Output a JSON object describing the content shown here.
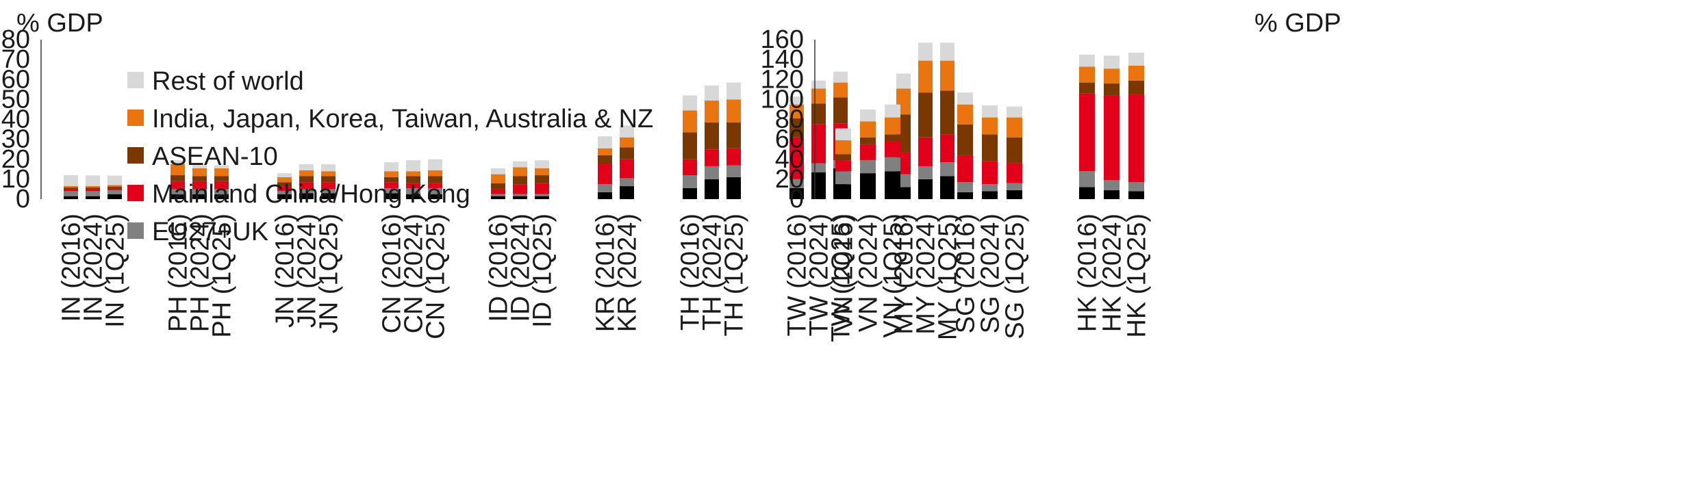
{
  "chart_data": {
    "type": "bar",
    "stacked": true,
    "colors": {
      "Other": "#000000",
      "EU27+UK": "#808080",
      "Mainland China/Hong Kong": "#e2001a",
      "ASEAN-10": "#7a3800",
      "India, Japan, Korea, Taiwan, Australia & NZ": "#ea7410",
      "Rest of world": "#d8d8d8"
    },
    "legend": [
      "Rest of world",
      "India, Japan, Korea, Taiwan, Australia & NZ",
      "ASEAN-10",
      "Mainland China/Hong Kong",
      "EU27+UK"
    ],
    "legend_placement": "top-left",
    "stack_order": [
      "Other",
      "EU27+UK",
      "Mainland China/Hong Kong",
      "ASEAN-10",
      "India, Japan, Korea, Taiwan, Australia & NZ",
      "Rest of world"
    ],
    "panels": [
      {
        "ylabel": "% GDP",
        "ylim": [
          0,
          80
        ],
        "yticks": [
          0,
          10,
          20,
          30,
          40,
          50,
          60,
          70,
          80
        ],
        "groups": [
          {
            "categories": [
              "IN (2016)",
              "IN (2024)",
              "IN (1Q25)"
            ],
            "values": [
              [
                1.5,
                2.5,
                1.0,
                0.8,
                0.8,
                5.5
              ],
              [
                1.5,
                2.5,
                1.0,
                0.8,
                0.8,
                5.3
              ],
              [
                2.5,
                2.0,
                1.0,
                0.8,
                0.8,
                4.7
              ]
            ]
          },
          {
            "categories": [
              "PH (2016)",
              "PH (2024)",
              "PH (1Q25)"
            ],
            "values": [
              [
                2.5,
                2.5,
                4.0,
                3.0,
                5.5,
                2.0
              ],
              [
                2.5,
                2.5,
                4.0,
                2.5,
                4.0,
                1.5
              ],
              [
                2.5,
                2.5,
                4.0,
                2.5,
                4.0,
                1.5
              ]
            ]
          },
          {
            "categories": [
              "JN (2016)",
              "JN (2024)",
              "JN (1Q25)"
            ],
            "values": [
              [
                2.5,
                1.5,
                2.5,
                2.0,
                2.5,
                2.0
              ],
              [
                3.0,
                2.0,
                3.5,
                3.0,
                3.0,
                3.0
              ],
              [
                3.0,
                2.0,
                3.5,
                3.0,
                2.5,
                3.5
              ]
            ]
          },
          {
            "categories": [
              "CN (2016)",
              "CN (2024)",
              "CN (1Q25)"
            ],
            "values": [
              [
                3.0,
                2.5,
                3.0,
                2.5,
                3.0,
                4.5
              ],
              [
                2.5,
                3.0,
                2.5,
                3.5,
                2.5,
                5.5
              ],
              [
                2.5,
                3.0,
                2.5,
                3.5,
                3.0,
                5.5
              ]
            ]
          },
          {
            "categories": [
              "ID (2016)",
              "ID (2024)",
              "ID (1Q25)"
            ],
            "values": [
              [
                1.5,
                1.0,
                2.5,
                3.0,
                4.5,
                3.0
              ],
              [
                1.5,
                1.0,
                5.0,
                4.0,
                4.5,
                3.0
              ],
              [
                1.5,
                1.0,
                5.5,
                4.0,
                3.5,
                4.0
              ]
            ]
          },
          {
            "categories": [
              "KR (2016)",
              "KR (2024)"
            ],
            "values": [
              [
                3.5,
                4.0,
                10.0,
                4.5,
                3.5,
                6.0
              ],
              [
                6.5,
                4.0,
                9.5,
                6.0,
                5.0,
                6.0
              ]
            ]
          },
          {
            "categories": [
              "TH (2016)",
              "TH (2024)",
              "TH (1Q25)"
            ],
            "values": [
              [
                5.5,
                6.5,
                8.0,
                13.5,
                11.0,
                7.5
              ],
              [
                10.0,
                6.5,
                8.5,
                13.5,
                11.0,
                7.5
              ],
              [
                11.0,
                6.0,
                8.5,
                13.0,
                11.5,
                8.5
              ]
            ]
          },
          {
            "categories": [
              "TW (2016)",
              "TW (2024)",
              "TW (1Q25)"
            ],
            "values": [
              [
                5.5,
                4.5,
                21.0,
                9.5,
                7.0,
                4.0
              ],
              [
                13.5,
                4.5,
                19.5,
                10.5,
                7.5,
                4.0
              ],
              [
                15.5,
                4.0,
                18.5,
                13.0,
                7.5,
                5.5
              ]
            ]
          },
          {
            "categories": [
              "MY (2016)",
              "MY (2024)",
              "MY (1Q25)"
            ],
            "values": [
              [
                6.0,
                6.5,
                11.0,
                19.0,
                13.0,
                7.5
              ],
              [
                10.0,
                6.5,
                14.5,
                22.5,
                16.0,
                9.0
              ],
              [
                11.5,
                7.0,
                14.0,
                22.0,
                15.0,
                9.0
              ]
            ]
          }
        ]
      },
      {
        "ylabel": "% GDP",
        "ylim": [
          0,
          160
        ],
        "yticks": [
          0,
          20,
          40,
          60,
          80,
          100,
          120,
          140,
          160
        ],
        "groups": [
          {
            "categories": [
              "VN (2016)",
              "VN (2024)",
              "VN (1Q25)"
            ],
            "values": [
              [
                15,
                13,
                11,
                6,
                14,
                12
              ],
              [
                26,
                13,
                16,
                7,
                16,
                12
              ],
              [
                28,
                14,
                16,
                7,
                17,
                13
              ]
            ]
          },
          {
            "categories": [
              "SG (2016)",
              "SG (2024)",
              "SG (1Q25)"
            ],
            "values": [
              [
                7,
                10,
                27,
                31,
                20,
                12
              ],
              [
                8,
                7,
                23,
                27,
                17,
                12
              ],
              [
                9,
                7,
                20,
                26,
                20,
                11
              ]
            ]
          },
          {
            "categories": [
              "HK (2016)",
              "HK (2024)",
              "HK (1Q25)"
            ],
            "values": [
              [
                12,
                16,
                78,
                11,
                16,
                12
              ],
              [
                9,
                10,
                85,
                12,
                15,
                13
              ],
              [
                8,
                9,
                88,
                14,
                15,
                13
              ]
            ]
          }
        ]
      }
    ]
  }
}
